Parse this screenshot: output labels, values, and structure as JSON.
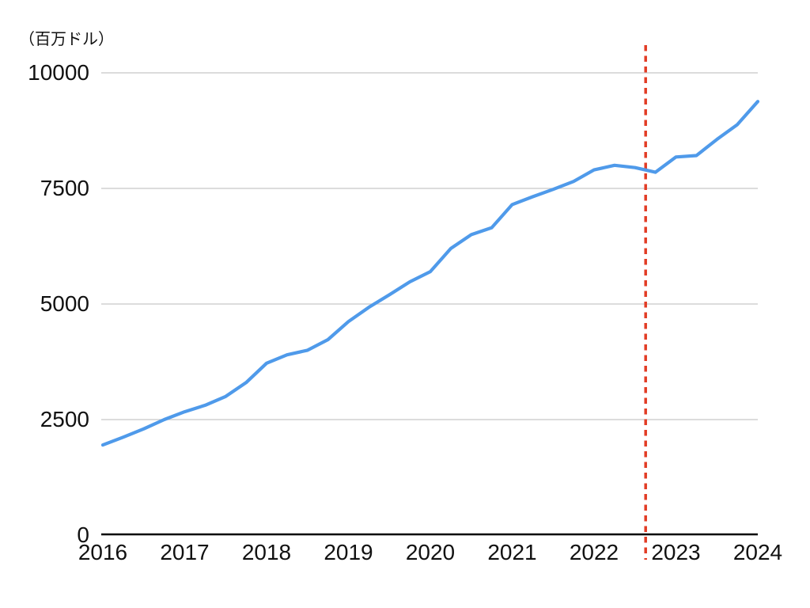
{
  "chart_data": {
    "type": "line",
    "title": "",
    "unit_label": "（百万ドル）",
    "xlabel": "",
    "ylabel": "（百万ドル）",
    "xlim": [
      2016,
      2024
    ],
    "ylim": [
      0,
      10000
    ],
    "grid": true,
    "legend": "none",
    "xticks": [
      "2016",
      "2017",
      "2018",
      "2019",
      "2020",
      "2021",
      "2022",
      "2023",
      "2024"
    ],
    "xtick_years": [
      2016,
      2017,
      2018,
      2019,
      2020,
      2021,
      2022,
      2023,
      2024
    ],
    "yticks": [
      0,
      2500,
      5000,
      7500,
      10000
    ],
    "x": [
      2016.0,
      2016.25,
      2016.5,
      2016.75,
      2017.0,
      2017.25,
      2017.5,
      2017.75,
      2018.0,
      2018.25,
      2018.5,
      2018.75,
      2019.0,
      2019.25,
      2019.5,
      2019.75,
      2020.0,
      2020.25,
      2020.5,
      2020.75,
      2021.0,
      2021.25,
      2021.5,
      2021.75,
      2022.0,
      2022.25,
      2022.5,
      2022.75,
      2023.0,
      2023.25,
      2023.5,
      2023.75,
      2024.0
    ],
    "series": [
      {
        "color": "#4f9aea",
        "values": [
          1950,
          2120,
          2300,
          2500,
          2670,
          2810,
          3000,
          3300,
          3720,
          3900,
          4000,
          4230,
          4620,
          4930,
          5200,
          5480,
          5700,
          6200,
          6500,
          6650,
          7150,
          7320,
          7480,
          7650,
          7900,
          8000,
          7950,
          7850,
          8180,
          8210,
          8560,
          8880,
          9380
        ]
      }
    ],
    "vline": {
      "x": 2022.63,
      "style": "dashed",
      "color": "#e23c25"
    }
  },
  "colors": {
    "line": "#4f9aea",
    "vline": "#e23c25",
    "grid": "#c7c7c7",
    "axis": "#000000",
    "text": "#111111",
    "background": "#ffffff"
  }
}
